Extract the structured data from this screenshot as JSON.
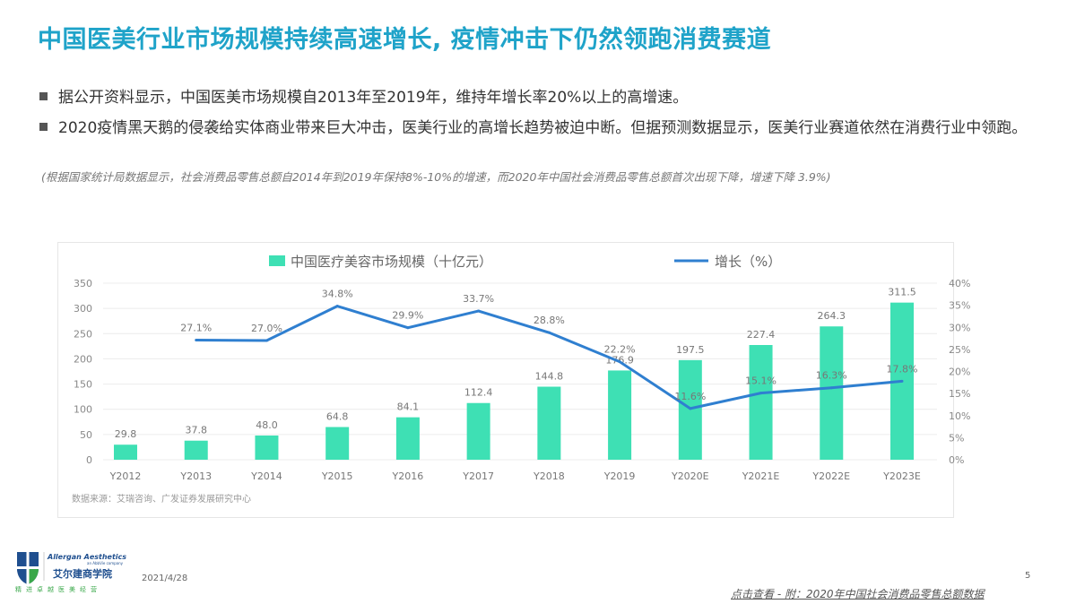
{
  "title": "中国医美行业市场规模持续高速增长, 疫情冲击下仍然领跑消费赛道",
  "bullets": [
    "据公开资料显示，中国医美市场规模自2013年至2019年，维持年增长率20%以上的高增速。",
    "2020疫情黑天鹅的侵袭给实体商业带来巨大冲击，医美行业的高增长趋势被迫中断。但据预测数据显示，医美行业赛道依然在消费行业中领跑。"
  ],
  "note": "(根据国家统计局数据显示，社会消费品零售总额自2014年到2019年保持8%-10%的增速，而2020年中国社会消费品零售总额首次出现下降，增速下降 3.9%)",
  "chart_data": {
    "type": "bar+line",
    "categories": [
      "Y2012",
      "Y2013",
      "Y2014",
      "Y2015",
      "Y2016",
      "Y2017",
      "Y2018",
      "Y2019",
      "Y2020E",
      "Y2021E",
      "Y2022E",
      "Y2023E"
    ],
    "series": [
      {
        "name": "中国医疗美容市场规模（十亿元）",
        "type": "bar",
        "axis": "left",
        "color": "#3ee0b4",
        "values": [
          29.8,
          37.8,
          48.0,
          64.8,
          84.1,
          112.4,
          144.8,
          176.9,
          197.5,
          227.4,
          264.3,
          311.5
        ],
        "labels": [
          "29.8",
          "37.8",
          "48.0",
          "64.8",
          "84.1",
          "112.4",
          "144.8",
          "176.9",
          "197.5",
          "227.4",
          "264.3",
          "311.5"
        ]
      },
      {
        "name": "增长（%）",
        "type": "line",
        "axis": "right",
        "color": "#2f7fd0",
        "values": [
          null,
          27.1,
          27.0,
          34.8,
          29.9,
          33.7,
          28.8,
          22.2,
          11.6,
          15.1,
          16.3,
          17.8
        ],
        "labels": [
          "",
          "27.1%",
          "27.0%",
          "34.8%",
          "29.9%",
          "33.7%",
          "28.8%",
          "22.2%",
          "11.6%",
          "15.1%",
          "16.3%",
          "17.8%"
        ]
      }
    ],
    "ylim": [
      0,
      350
    ],
    "y_ticks": [
      "0",
      "50",
      "100",
      "150",
      "200",
      "250",
      "300",
      "350"
    ],
    "y2lim": [
      0,
      40
    ],
    "y2_ticks": [
      "0%",
      "5%",
      "10%",
      "15%",
      "20%",
      "25%",
      "30%",
      "35%",
      "40%"
    ],
    "grid": true,
    "legend": "top",
    "source": "数据来源：艾瑞咨询、广发证券发展研究中心"
  },
  "footer": {
    "logo_text": "Allergan Aesthetics an AbbVie company 艾尔建商学院",
    "date": "2021/4/28",
    "page": "5",
    "link": "点击查看 - 附：2020年中国社会消费品零售总额数据"
  }
}
